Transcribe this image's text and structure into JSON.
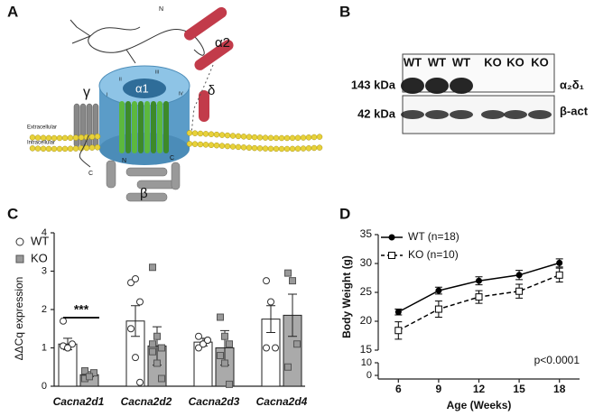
{
  "panel_labels": [
    "A",
    "B",
    "C",
    "D"
  ],
  "diagram": {
    "labels": [
      "N",
      "α2",
      "δ",
      "γ",
      "α1",
      "Extracellular",
      "Intracellular",
      "C",
      "N",
      "β",
      "C",
      "I",
      "II",
      "III",
      "IV"
    ]
  },
  "blot": {
    "lanes": [
      "WT",
      "WT",
      "WT",
      "KO",
      "KO",
      "KO"
    ],
    "rows": [
      {
        "label": "143 kDa",
        "protein": "α₂δ₁"
      },
      {
        "label": "42 kDa",
        "protein": "β-act"
      }
    ]
  },
  "chart_data": [
    {
      "type": "bar",
      "ylabel": "ΔΔCq expression",
      "categories": [
        "Cacna2d1",
        "Cacna2d2",
        "Cacna2d3",
        "Cacna2d4"
      ],
      "series": [
        {
          "name": "WT",
          "color": "#ffffff",
          "values": [
            1.1,
            1.7,
            1.15,
            1.75
          ],
          "errors": [
            0.15,
            0.4,
            0.1,
            0.35
          ],
          "points": [
            [
              1.7,
              1.0,
              1.1,
              1.05,
              1.0
            ],
            [
              2.7,
              2.8,
              2.2,
              1.5,
              0.75,
              0.1
            ],
            [
              1.3,
              1.1,
              1.2,
              1.0,
              1.1,
              1.2
            ],
            [
              2.75,
              2.2,
              1.0,
              1.0
            ]
          ]
        },
        {
          "name": "KO",
          "color": "#aaaaaa",
          "values": [
            0.3,
            1.05,
            1.0,
            1.85
          ],
          "errors": [
            0.05,
            0.5,
            0.45,
            0.55
          ],
          "points": [
            [
              0.2,
              0.3,
              0.35,
              0.4,
              0.25
            ],
            [
              3.1,
              1.3,
              1.0,
              0.9,
              0.6,
              0.2,
              1.1
            ],
            [
              1.8,
              1.3,
              1.1,
              0.8,
              0.6,
              0.05
            ],
            [
              2.95,
              2.75,
              1.1,
              0.5
            ]
          ]
        }
      ],
      "ylim": [
        0,
        4
      ],
      "yticks": [
        0,
        1,
        2,
        3,
        4
      ],
      "annotation": "***",
      "legend": "top-left"
    },
    {
      "type": "line",
      "xlabel": "Age (Weeks)",
      "ylabel": "Body Weight (g)",
      "x": [
        6,
        9,
        12,
        15,
        18
      ],
      "xlim": [
        4.5,
        19.5
      ],
      "xticks": [
        6,
        9,
        12,
        15,
        18
      ],
      "ylim": [
        15,
        35
      ],
      "yticks": [
        15,
        20,
        25,
        30,
        35
      ],
      "axis_break": {
        "ylim": [
          0,
          10
        ],
        "yticks": [
          0,
          10
        ]
      },
      "series": [
        {
          "name": "WT (n=18)",
          "color": "#000000",
          "marker": "circle",
          "dashed": false,
          "values": [
            21.6,
            25.3,
            27.0,
            28.0,
            30.1
          ],
          "errors": [
            0.5,
            0.6,
            0.7,
            0.8,
            0.7
          ]
        },
        {
          "name": "KO (n=10)",
          "color": "#000000",
          "marker": "open-square",
          "dashed": true,
          "values": [
            18.4,
            22.1,
            24.2,
            25.2,
            28.0
          ],
          "errors": [
            1.5,
            1.4,
            1.1,
            1.2,
            1.2
          ]
        }
      ],
      "annotation": "p<0.0001",
      "legend": "top-left"
    }
  ]
}
